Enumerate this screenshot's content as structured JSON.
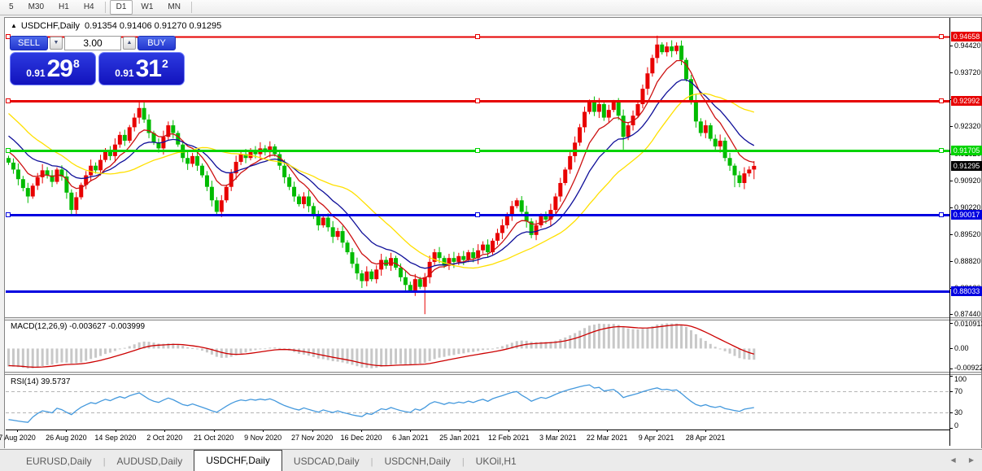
{
  "toolbar": {
    "timeframes": [
      "5",
      "M30",
      "H1",
      "H4",
      "D1",
      "W1",
      "MN"
    ],
    "active": "D1"
  },
  "chart_header": {
    "marker": "▲",
    "symbol": "USDCHF,Daily",
    "ohlc": "0.91354 0.91406 0.91270 0.91295"
  },
  "trade_panel": {
    "sell_label": "SELL",
    "buy_label": "BUY",
    "volume": "3.00",
    "spin_down": "▼",
    "spin_up": "▲",
    "sell_price": {
      "small": "0.91",
      "big": "29",
      "sup": "8"
    },
    "buy_price": {
      "small": "0.91",
      "big": "31",
      "sup": "2"
    }
  },
  "price_scale": {
    "ticks": [
      "0.94420",
      "0.93720",
      "0.93020",
      "0.92320",
      "0.91620",
      "0.90920",
      "0.90220",
      "0.89520",
      "0.88820",
      "0.88120",
      "0.87440"
    ],
    "badges": [
      {
        "text": "0.94658",
        "value": 0.94658,
        "bg": "#e60000",
        "fg": "#ffffff"
      },
      {
        "text": "0.92992",
        "value": 0.92992,
        "bg": "#e60000",
        "fg": "#ffffff"
      },
      {
        "text": "0.91705",
        "value": 0.91705,
        "bg": "#00d300",
        "fg": "#ffffff"
      },
      {
        "text": "0.91295",
        "value": 0.91295,
        "bg": "#000000",
        "fg": "#ffffff"
      },
      {
        "text": "0.90017",
        "value": 0.90017,
        "bg": "#0000e0",
        "fg": "#ffffff"
      },
      {
        "text": "0.88033",
        "value": 0.88033,
        "bg": "#0000e0",
        "fg": "#ffffff"
      }
    ]
  },
  "macd_panel": {
    "label": "MACD(12,26,9) -0.003627 -0.003999",
    "axis_top": "0.010913",
    "axis_zero": "0.00",
    "axis_bottom": "-0.00922"
  },
  "rsi_panel": {
    "label": "RSI(14) 39.5737",
    "axis": [
      "100",
      "70",
      "30",
      "0"
    ]
  },
  "date_axis": {
    "labels": [
      "7 Aug 2020",
      "26 Aug 2020",
      "14 Sep 2020",
      "2 Oct 2020",
      "21 Oct 2020",
      "9 Nov 2020",
      "27 Nov 2020",
      "16 Dec 2020",
      "6 Jan 2021",
      "25 Jan 2021",
      "12 Feb 2021",
      "3 Mar 2021",
      "22 Mar 2021",
      "9 Apr 2021",
      "28 Apr 2021"
    ]
  },
  "tabs": {
    "items": [
      "EURUSD,Daily",
      "AUDUSD,Daily",
      "USDCHF,Daily",
      "USDCAD,Daily",
      "USDCNH,Daily",
      "UKOil,H1"
    ],
    "active": "USDCHF,Daily",
    "scroll_left": "◀",
    "scroll_right": "▶"
  },
  "chart_data": {
    "type": "candlestick",
    "symbol": "USDCHF",
    "timeframe": "Daily",
    "price_axis": {
      "max": 0.951,
      "min": 0.8736
    },
    "up_color": "#e80000",
    "down_color": "#00bb00",
    "first_open": 0.915,
    "prehistory": [
      0.947,
      0.9455,
      0.944,
      0.943,
      0.9445,
      0.942,
      0.94,
      0.9385,
      0.9395,
      0.937,
      0.935,
      0.933,
      0.934,
      0.9315,
      0.93,
      0.9285,
      0.9295,
      0.927,
      0.925,
      0.9235,
      0.9245,
      0.922,
      0.92,
      0.9185,
      0.9195,
      0.9175,
      0.916,
      0.9145,
      0.9155,
      0.915
    ],
    "closes": [
      0.9138,
      0.912,
      0.9095,
      0.9072,
      0.905,
      0.9078,
      0.91,
      0.9118,
      0.9105,
      0.9088,
      0.912,
      0.9102,
      0.906,
      0.9015,
      0.9048,
      0.908,
      0.9105,
      0.913,
      0.9118,
      0.9145,
      0.917,
      0.9155,
      0.9185,
      0.921,
      0.9195,
      0.923,
      0.9255,
      0.928,
      0.925,
      0.9215,
      0.919,
      0.9175,
      0.9205,
      0.9235,
      0.9215,
      0.9185,
      0.915,
      0.9135,
      0.9155,
      0.913,
      0.9105,
      0.9075,
      0.904,
      0.901,
      0.904,
      0.9075,
      0.911,
      0.914,
      0.916,
      0.915,
      0.917,
      0.916,
      0.9175,
      0.9165,
      0.918,
      0.916,
      0.913,
      0.91,
      0.9075,
      0.905,
      0.903,
      0.905,
      0.9025,
      0.9,
      0.8975,
      0.8995,
      0.897,
      0.8945,
      0.896,
      0.893,
      0.8905,
      0.8875,
      0.885,
      0.883,
      0.8855,
      0.8835,
      0.886,
      0.8885,
      0.887,
      0.889,
      0.8865,
      0.884,
      0.882,
      0.8805,
      0.8835,
      0.8815,
      0.884,
      0.888,
      0.8905,
      0.889,
      0.887,
      0.889,
      0.888,
      0.8895,
      0.8885,
      0.8905,
      0.889,
      0.891,
      0.8925,
      0.8905,
      0.8935,
      0.8955,
      0.8975,
      0.9,
      0.9025,
      0.904,
      0.901,
      0.8985,
      0.895,
      0.8975,
      0.9,
      0.899,
      0.9015,
      0.905,
      0.9085,
      0.912,
      0.9155,
      0.919,
      0.923,
      0.927,
      0.9299,
      0.927,
      0.929,
      0.9255,
      0.9275,
      0.9295,
      0.926,
      0.9205,
      0.9235,
      0.926,
      0.929,
      0.933,
      0.937,
      0.941,
      0.9445,
      0.9425,
      0.944,
      0.9428,
      0.9442,
      0.9405,
      0.9355,
      0.93,
      0.9245,
      0.9215,
      0.9235,
      0.92,
      0.918,
      0.9195,
      0.915,
      0.913,
      0.9105,
      0.9085,
      0.911,
      0.912,
      0.91295
    ],
    "wick_overrides": {
      "4": {
        "l": 0.9033
      },
      "13": {
        "l": 0.9002
      },
      "28": {
        "h": 0.9299
      },
      "33": {
        "h": 0.9245
      },
      "43": {
        "l": 0.9002
      },
      "73": {
        "l": 0.8812
      },
      "83": {
        "l": 0.8803
      },
      "86": {
        "l": 0.8744
      },
      "105": {
        "h": 0.9046
      },
      "120": {
        "h": 0.9302
      },
      "127": {
        "l": 0.9172
      },
      "134": {
        "h": 0.9468
      },
      "150": {
        "l": 0.9074
      },
      "154": {
        "h": 0.9142,
        "l": 0.9095
      }
    },
    "moving_averages": [
      {
        "name": "fast",
        "type": "ema",
        "period": 8,
        "color": "#cc1111"
      },
      {
        "name": "medium",
        "type": "ema",
        "period": 16,
        "color": "#0f0f99"
      },
      {
        "name": "slow",
        "type": "sma",
        "period": 26,
        "color": "#ffe000"
      }
    ],
    "horizontal_lines": [
      {
        "value": 0.94658,
        "color": "#e60000",
        "width": 2,
        "selected": true
      },
      {
        "value": 0.92992,
        "color": "#e60000",
        "width": 3,
        "selected": true
      },
      {
        "value": 0.91705,
        "color": "#00d300",
        "width": 3,
        "selected": true
      },
      {
        "value": 0.90017,
        "color": "#0000e0",
        "width": 3,
        "selected": true
      },
      {
        "value": 0.88033,
        "color": "#0000e0",
        "width": 3,
        "selected": false
      }
    ],
    "macd": {
      "fast": 12,
      "slow": 26,
      "signal": 9,
      "hist_color": "#c8c8c8",
      "signal_color": "#cc0000"
    },
    "rsi": {
      "period": 14,
      "color": "#4499dd",
      "levels": [
        70,
        30
      ]
    }
  }
}
